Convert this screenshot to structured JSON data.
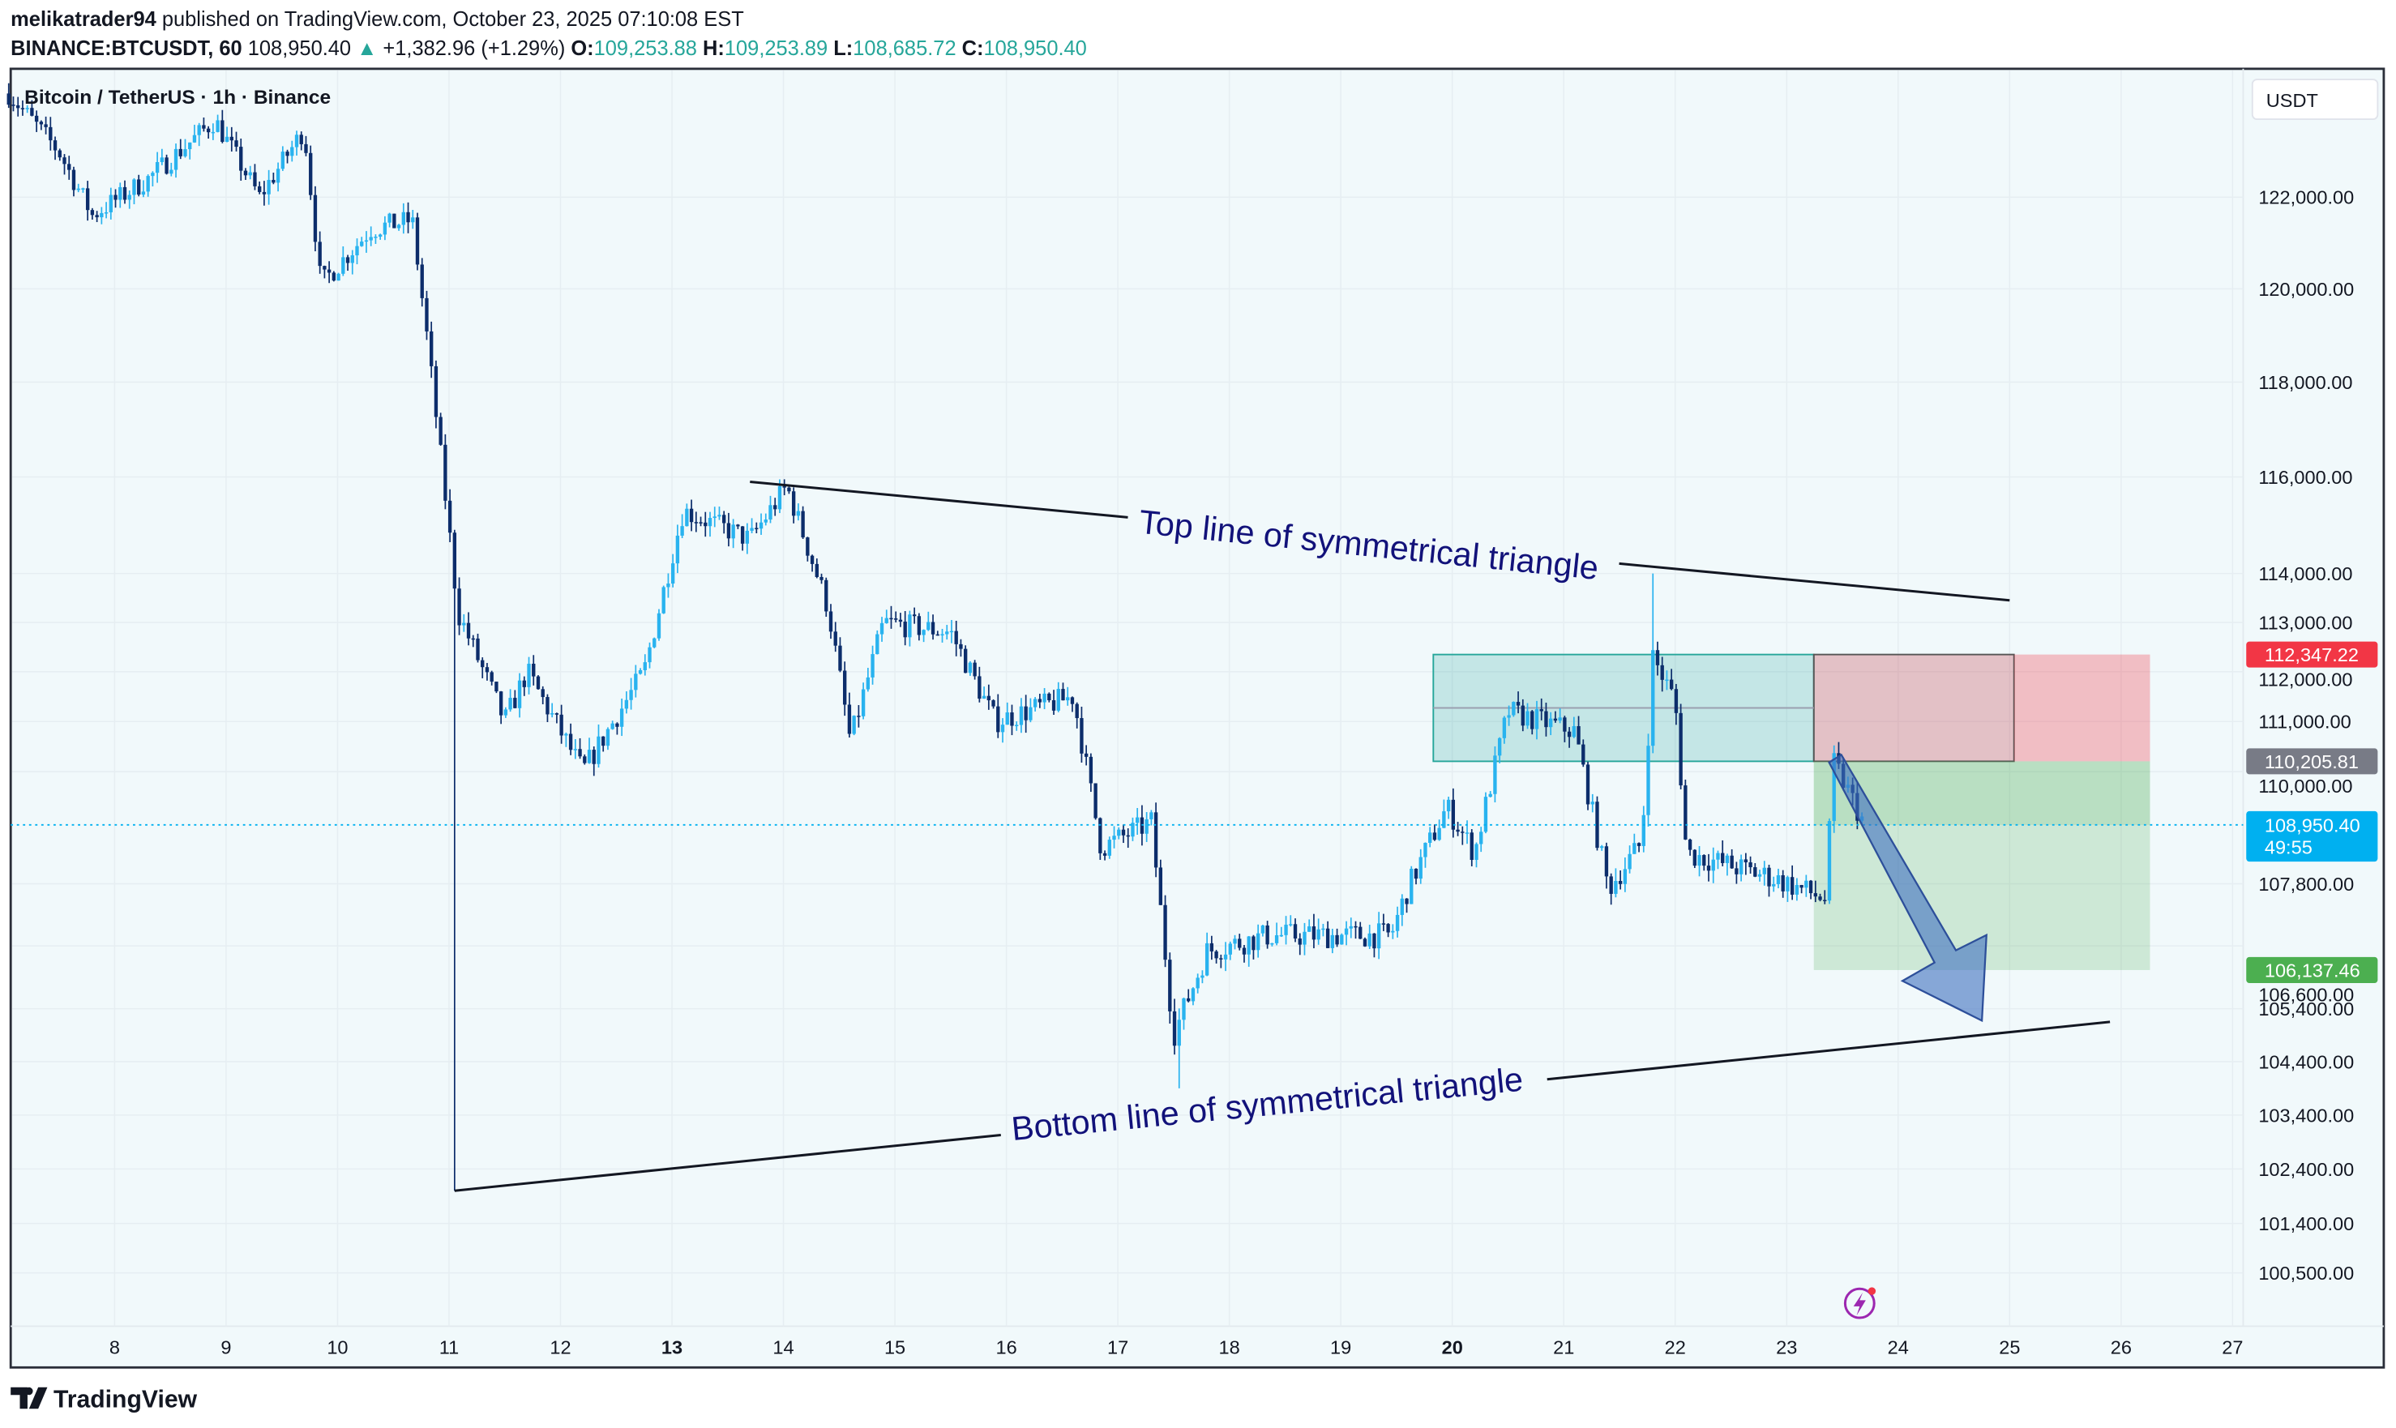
{
  "header": {
    "author": "melikatrader94",
    "published": " published on TradingView.com, October 23, 2025 07:10:08 EST",
    "symbol": "BINANCE:BTCUSDT, 60",
    "last": "108,950.40",
    "change": "+1,382.96 (+1.29%)",
    "o_label": "O:",
    "o": "109,253.88",
    "h_label": "H:",
    "h": "109,253.89",
    "l_label": "L:",
    "l": "108,685.72",
    "c_label": "C:",
    "c": "108,950.40"
  },
  "chart_title": "Bitcoin / TetherUS · 1h · Binance",
  "currency_button": "USDT",
  "brand": "TradingView",
  "colors": {
    "up": "#29b3ef",
    "down": "#0c2d6b",
    "bg": "#f1f9fb",
    "accent": "#26a69a"
  },
  "chart_data": {
    "type": "candlestick",
    "title": "Bitcoin / TetherUS · 1h · Binance",
    "x_ticks": [
      {
        "day": 8,
        "label": "8"
      },
      {
        "day": 9,
        "label": "9"
      },
      {
        "day": 10,
        "label": "10"
      },
      {
        "day": 11,
        "label": "11"
      },
      {
        "day": 12,
        "label": "12"
      },
      {
        "day": 13,
        "label": "13",
        "bold": true
      },
      {
        "day": 14,
        "label": "14"
      },
      {
        "day": 15,
        "label": "15"
      },
      {
        "day": 16,
        "label": "16"
      },
      {
        "day": 17,
        "label": "17"
      },
      {
        "day": 18,
        "label": "18"
      },
      {
        "day": 19,
        "label": "19"
      },
      {
        "day": 20,
        "label": "20",
        "bold": true
      },
      {
        "day": 21,
        "label": "21"
      },
      {
        "day": 22,
        "label": "22"
      },
      {
        "day": 23,
        "label": "23"
      },
      {
        "day": 24,
        "label": "24"
      },
      {
        "day": 25,
        "label": "25"
      },
      {
        "day": 26,
        "label": "26"
      },
      {
        "day": 27,
        "label": "27"
      }
    ],
    "y_ticks": [
      {
        "value": 122000,
        "label": "122,000.00"
      },
      {
        "value": 120000,
        "label": "120,000.00"
      },
      {
        "value": 118000,
        "label": "118,000.00"
      },
      {
        "value": 116000,
        "label": "116,000.00"
      },
      {
        "value": 114000,
        "label": "114,000.00"
      },
      {
        "value": 113000,
        "label": "113,000.00"
      },
      {
        "value": 112000,
        "label": "112,000.00"
      },
      {
        "value": 111000,
        "label": "111,000.00"
      },
      {
        "value": 110000,
        "label": "110,000.00"
      },
      {
        "value": 107800,
        "label": "107,800.00"
      },
      {
        "value": 106600,
        "label": "106,600.00"
      },
      {
        "value": 105400,
        "label": "105,400.00"
      },
      {
        "value": 104400,
        "label": "104,400.00"
      },
      {
        "value": 103400,
        "label": "103,400.00"
      },
      {
        "value": 102400,
        "label": "102,400.00"
      },
      {
        "value": 101400,
        "label": "101,400.00"
      },
      {
        "value": 100500,
        "label": "100,500.00"
      }
    ],
    "price_tags": [
      {
        "value": 112347.22,
        "label": "112,347.22",
        "color": "#f23645"
      },
      {
        "value": 110205.81,
        "label": "110,205.81",
        "color": "#787b86"
      },
      {
        "value": 106137.46,
        "label": "106,137.46",
        "color": "#4caf50"
      }
    ],
    "current_price": {
      "value": 108950.4,
      "label": "108,950.40",
      "countdown": "49:55",
      "color": "#00b0f0"
    },
    "price_path": [
      [
        7.05,
        124300
      ],
      [
        7.5,
        123000
      ],
      [
        7.8,
        121600
      ],
      [
        8.3,
        122400
      ],
      [
        8.9,
        123700
      ],
      [
        9.3,
        122000
      ],
      [
        9.7,
        123500
      ],
      [
        9.85,
        120100
      ],
      [
        10.3,
        121300
      ],
      [
        10.67,
        121500
      ],
      [
        10.8,
        119000
      ],
      [
        11.0,
        114900
      ],
      [
        11.08,
        113200
      ],
      [
        11.5,
        111000
      ],
      [
        11.7,
        112000
      ],
      [
        12.2,
        110000
      ],
      [
        12.75,
        112000
      ],
      [
        13.1,
        115300
      ],
      [
        13.7,
        114700
      ],
      [
        14.03,
        115800
      ],
      [
        14.4,
        113300
      ],
      [
        14.6,
        110600
      ],
      [
        14.9,
        113000
      ],
      [
        15.5,
        112800
      ],
      [
        15.9,
        111000
      ],
      [
        16.6,
        111500
      ],
      [
        16.85,
        108500
      ],
      [
        17.3,
        109000
      ],
      [
        17.5,
        104900
      ],
      [
        17.8,
        106500
      ],
      [
        18.35,
        106800
      ],
      [
        19.45,
        106800
      ],
      [
        19.6,
        107700
      ],
      [
        19.95,
        109300
      ],
      [
        20.2,
        108400
      ],
      [
        20.5,
        111200
      ],
      [
        21.1,
        110800
      ],
      [
        21.4,
        107700
      ],
      [
        21.7,
        108600
      ],
      [
        21.8,
        112300
      ],
      [
        22.0,
        111400
      ],
      [
        22.1,
        108400
      ],
      [
        22.9,
        107900
      ],
      [
        23.35,
        107500
      ],
      [
        23.42,
        110200
      ],
      [
        23.7,
        108950
      ]
    ],
    "spikes": [
      {
        "day": 11.05,
        "low": 102000
      },
      {
        "day": 21.82,
        "high": 114000
      },
      {
        "day": 17.55,
        "low": 103900
      }
    ],
    "annotations": {
      "top_line": {
        "from": [
          13.7,
          115900
        ],
        "to": [
          25.0,
          113450
        ],
        "label": "Top line of symmetrical triangle"
      },
      "bottom_line": {
        "from": [
          11.05,
          102000
        ],
        "to": [
          25.9,
          105150
        ],
        "label": "Bottom line of symmetrical triangle"
      },
      "position_short": {
        "entry": 110205.81,
        "stop": 112347.22,
        "target": 106137.46
      }
    }
  }
}
